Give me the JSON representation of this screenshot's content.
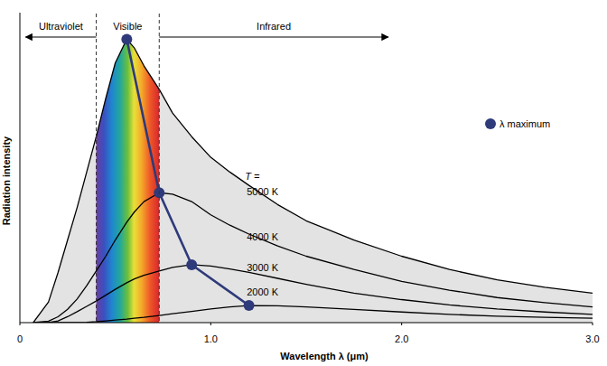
{
  "chart_data": {
    "type": "line",
    "x_label": "Wavelength λ (μm)",
    "y_label": "Radiation intensity",
    "x": [
      0.07,
      0.15,
      0.2,
      0.25,
      0.3,
      0.35,
      0.4,
      0.45,
      0.5,
      0.56,
      0.6,
      0.65,
      0.73,
      0.8,
      0.9,
      1.0,
      1.1,
      1.2,
      1.35,
      1.5,
      1.75,
      2.0,
      2.25,
      2.5,
      2.75,
      3.0
    ],
    "xlim": [
      0,
      3.0
    ],
    "xticks": [
      0,
      {
        "value": 1,
        "label": "1.0"
      },
      {
        "value": 2,
        "label": "2.0"
      },
      {
        "value": 3,
        "label": "3.0"
      }
    ],
    "ylim": [
      0,
      105
    ],
    "tick_labels": "x",
    "grid": false,
    "legend": "upper right",
    "annotations": [
      {
        "text": "Ultraviolet",
        "x": [
          0.03,
          0.4
        ]
      },
      {
        "text": "Visible",
        "x": [
          0.4,
          0.73
        ]
      },
      {
        "text": "Infrared",
        "x": [
          0.73,
          1.93
        ]
      },
      {
        "text": "T ="
      }
    ],
    "series": [
      {
        "name": "5000 K",
        "color": "#000000",
        "values": [
          0,
          7,
          17,
          28,
          39,
          51,
          63,
          76,
          88,
          96,
          93,
          87,
          79,
          71,
          63,
          56,
          51,
          46.5,
          40,
          34.5,
          28,
          22.5,
          18,
          14.5,
          12,
          10
        ]
      },
      {
        "name": "4000 K",
        "color": "#000000",
        "values": [
          0,
          0.5,
          2,
          4.5,
          8,
          12.5,
          17.5,
          22.5,
          28,
          34,
          37.5,
          41,
          44,
          43.5,
          41,
          36.5,
          33,
          30,
          26,
          22.5,
          18,
          14,
          11,
          8.5,
          6.8,
          5.3
        ]
      },
      {
        "name": "3000 K",
        "color": "#000000",
        "values": [
          0,
          0,
          0.6,
          2,
          3.7,
          5.5,
          7.3,
          9.3,
          11.3,
          13.5,
          14.8,
          16,
          17.5,
          18.7,
          19.6,
          19.2,
          18.2,
          17,
          15,
          13,
          10,
          7.8,
          6,
          4.6,
          3.6,
          2.8
        ]
      },
      {
        "name": "2000 K",
        "color": "#000000",
        "values": [
          0,
          0,
          0,
          0,
          0,
          0.1,
          0.3,
          0.6,
          0.9,
          1.2,
          1.5,
          1.8,
          2.4,
          3,
          3.8,
          4.6,
          5.3,
          5.8,
          5.7,
          5.3,
          4.5,
          3.6,
          2.8,
          2.2,
          1.8,
          1.5
        ]
      },
      {
        "name": "λ maximum",
        "type": "scatter",
        "color": "#2e3a7a",
        "marker": "circle",
        "line_style": "solid",
        "x": [
          0.56,
          0.73,
          0.9,
          1.2
        ],
        "values": [
          96,
          44,
          19.6,
          5.8
        ]
      }
    ]
  }
}
